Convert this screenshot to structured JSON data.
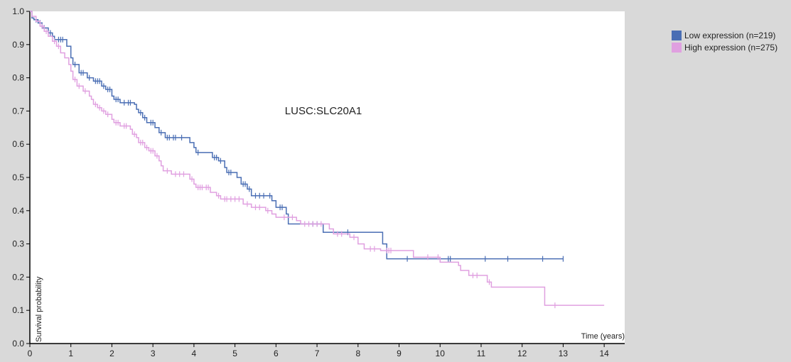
{
  "chart_data": {
    "type": "line",
    "title": "LUSC:SLC20A1",
    "xlabel": "Time (years)",
    "ylabel": "Survival probability",
    "xlim": [
      0,
      14.5
    ],
    "ylim": [
      0,
      1.0
    ],
    "x_ticks": [
      0,
      1,
      2,
      3,
      4,
      5,
      6,
      7,
      8,
      9,
      10,
      11,
      12,
      13,
      14
    ],
    "y_ticks": [
      0.0,
      0.1,
      0.2,
      0.3,
      0.4,
      0.5,
      0.6,
      0.7,
      0.8,
      0.9,
      1.0
    ],
    "grid": false,
    "legend_position": "top-right",
    "series": [
      {
        "name": "Low expression (n=219)",
        "color": "#4a6eb4",
        "steps": [
          [
            0,
            1.0
          ],
          [
            0.05,
            0.98
          ],
          [
            0.1,
            0.975
          ],
          [
            0.2,
            0.965
          ],
          [
            0.3,
            0.95
          ],
          [
            0.45,
            0.935
          ],
          [
            0.55,
            0.925
          ],
          [
            0.6,
            0.915
          ],
          [
            0.9,
            0.895
          ],
          [
            1.0,
            0.86
          ],
          [
            1.05,
            0.84
          ],
          [
            1.2,
            0.815
          ],
          [
            1.4,
            0.8
          ],
          [
            1.55,
            0.79
          ],
          [
            1.75,
            0.775
          ],
          [
            1.85,
            0.765
          ],
          [
            2.0,
            0.745
          ],
          [
            2.05,
            0.735
          ],
          [
            2.2,
            0.725
          ],
          [
            2.55,
            0.72
          ],
          [
            2.6,
            0.705
          ],
          [
            2.65,
            0.695
          ],
          [
            2.75,
            0.68
          ],
          [
            2.85,
            0.665
          ],
          [
            3.05,
            0.65
          ],
          [
            3.15,
            0.635
          ],
          [
            3.3,
            0.62
          ],
          [
            3.9,
            0.605
          ],
          [
            4.0,
            0.59
          ],
          [
            4.05,
            0.575
          ],
          [
            4.45,
            0.56
          ],
          [
            4.6,
            0.55
          ],
          [
            4.75,
            0.53
          ],
          [
            4.8,
            0.515
          ],
          [
            5.05,
            0.5
          ],
          [
            5.15,
            0.48
          ],
          [
            5.3,
            0.465
          ],
          [
            5.4,
            0.445
          ],
          [
            5.9,
            0.43
          ],
          [
            6.0,
            0.41
          ],
          [
            6.25,
            0.39
          ],
          [
            6.3,
            0.36
          ],
          [
            7.15,
            0.335
          ],
          [
            8.6,
            0.3
          ],
          [
            8.7,
            0.255
          ],
          [
            13.0,
            0.255
          ]
        ],
        "censor": [
          0.15,
          0.25,
          0.35,
          0.5,
          0.7,
          0.75,
          0.8,
          1.1,
          1.25,
          1.3,
          1.45,
          1.6,
          1.65,
          1.7,
          1.8,
          1.9,
          1.95,
          2.1,
          2.15,
          2.3,
          2.4,
          2.45,
          2.7,
          2.8,
          2.95,
          3.0,
          3.2,
          3.35,
          3.4,
          3.5,
          3.55,
          3.7,
          4.1,
          4.5,
          4.55,
          4.65,
          4.85,
          4.9,
          5.2,
          5.25,
          5.35,
          5.5,
          5.6,
          5.7,
          5.85,
          6.1,
          6.15,
          6.9,
          7.0,
          7.75,
          9.2,
          10.2,
          10.25,
          11.1,
          11.65,
          12.5,
          13.0
        ]
      },
      {
        "name": "High expression (n=275)",
        "color": "#e0a0e0",
        "steps": [
          [
            0,
            1.0
          ],
          [
            0.05,
            0.985
          ],
          [
            0.15,
            0.97
          ],
          [
            0.25,
            0.955
          ],
          [
            0.35,
            0.94
          ],
          [
            0.45,
            0.925
          ],
          [
            0.55,
            0.91
          ],
          [
            0.65,
            0.895
          ],
          [
            0.75,
            0.875
          ],
          [
            0.85,
            0.86
          ],
          [
            0.95,
            0.84
          ],
          [
            1.0,
            0.82
          ],
          [
            1.05,
            0.795
          ],
          [
            1.15,
            0.775
          ],
          [
            1.3,
            0.76
          ],
          [
            1.45,
            0.745
          ],
          [
            1.5,
            0.735
          ],
          [
            1.55,
            0.72
          ],
          [
            1.65,
            0.71
          ],
          [
            1.75,
            0.7
          ],
          [
            1.85,
            0.69
          ],
          [
            2.0,
            0.675
          ],
          [
            2.05,
            0.665
          ],
          [
            2.2,
            0.655
          ],
          [
            2.45,
            0.645
          ],
          [
            2.5,
            0.63
          ],
          [
            2.6,
            0.62
          ],
          [
            2.65,
            0.605
          ],
          [
            2.8,
            0.59
          ],
          [
            2.9,
            0.58
          ],
          [
            3.05,
            0.565
          ],
          [
            3.15,
            0.55
          ],
          [
            3.2,
            0.535
          ],
          [
            3.25,
            0.52
          ],
          [
            3.45,
            0.51
          ],
          [
            3.9,
            0.495
          ],
          [
            4.0,
            0.48
          ],
          [
            4.05,
            0.47
          ],
          [
            4.4,
            0.455
          ],
          [
            4.55,
            0.445
          ],
          [
            4.65,
            0.435
          ],
          [
            5.2,
            0.42
          ],
          [
            5.4,
            0.41
          ],
          [
            5.75,
            0.4
          ],
          [
            5.9,
            0.39
          ],
          [
            6.0,
            0.38
          ],
          [
            6.5,
            0.37
          ],
          [
            6.6,
            0.36
          ],
          [
            7.3,
            0.345
          ],
          [
            7.4,
            0.33
          ],
          [
            7.8,
            0.32
          ],
          [
            8.0,
            0.3
          ],
          [
            8.15,
            0.285
          ],
          [
            8.55,
            0.28
          ],
          [
            9.35,
            0.26
          ],
          [
            10.0,
            0.245
          ],
          [
            10.45,
            0.235
          ],
          [
            10.5,
            0.22
          ],
          [
            10.7,
            0.205
          ],
          [
            11.15,
            0.185
          ],
          [
            11.25,
            0.17
          ],
          [
            12.55,
            0.115
          ],
          [
            14.0,
            0.115
          ]
        ],
        "censor": [
          0.3,
          0.4,
          0.6,
          0.7,
          1.1,
          1.2,
          1.35,
          1.6,
          1.7,
          1.8,
          1.9,
          2.1,
          2.15,
          2.3,
          2.35,
          2.55,
          2.7,
          2.75,
          2.85,
          2.95,
          3.0,
          3.1,
          3.35,
          3.55,
          3.65,
          3.75,
          3.95,
          4.1,
          4.15,
          4.2,
          4.3,
          4.35,
          4.6,
          4.75,
          4.8,
          4.9,
          5.0,
          5.1,
          5.3,
          5.5,
          5.6,
          5.8,
          6.2,
          6.4,
          6.7,
          6.8,
          6.9,
          7.0,
          7.1,
          7.5,
          7.6,
          7.9,
          8.3,
          8.4,
          8.7,
          8.75,
          8.8,
          9.7,
          9.95,
          10.8,
          10.9,
          11.2,
          12.8
        ]
      }
    ]
  }
}
